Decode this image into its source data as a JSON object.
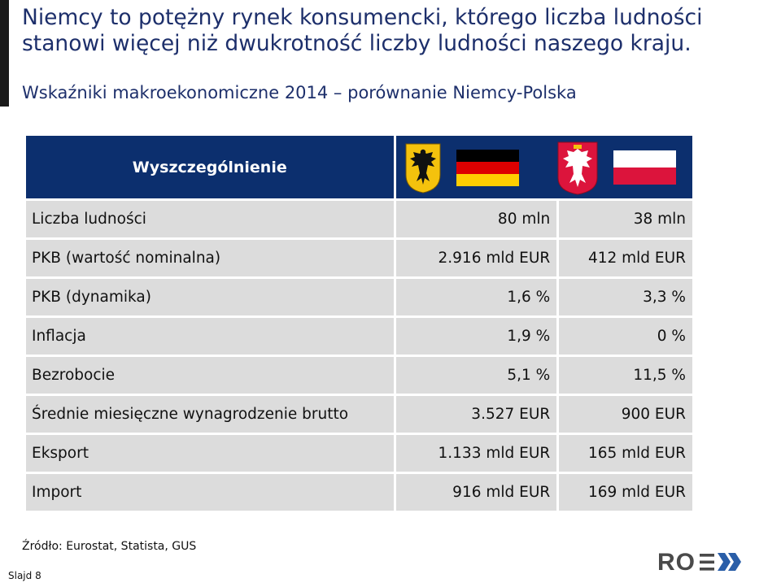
{
  "slide": {
    "title": "Niemcy to potężny rynek konsumencki, którego liczba ludności stanowi więcej niż dwukrotność liczby ludności naszego kraju.",
    "subtitle": "Wskaźniki makroekonomiczne 2014 – porównanie Niemcy-Polska",
    "source": "Źródło: Eurostat, Statista, GUS",
    "slide_number": "Slajd 8",
    "logo_text": "ROEX"
  },
  "table": {
    "header_label": "Wyszczególnienie",
    "colors": {
      "header_bg": "#0c2f6e",
      "row_bg": "#dcdcdc"
    },
    "rows": [
      {
        "label": "Liczba ludności",
        "de": "80 mln",
        "pl": "38 mln"
      },
      {
        "label": "PKB (wartość nominalna)",
        "de": "2.916 mld EUR",
        "pl": "412 mld EUR"
      },
      {
        "label": "PKB (dynamika)",
        "de": "1,6 %",
        "pl": "3,3 %"
      },
      {
        "label": "Inflacja",
        "de": "1,9 %",
        "pl": "0 %"
      },
      {
        "label": "Bezrobocie",
        "de": "5,1 %",
        "pl": "11,5 %"
      },
      {
        "label": "Średnie miesięczne wynagrodzenie brutto",
        "de": "3.527 EUR",
        "pl": "900 EUR"
      },
      {
        "label": "Eksport",
        "de": "1.133 mld EUR",
        "pl": "165 mld EUR"
      },
      {
        "label": "Import",
        "de": "916 mld EUR",
        "pl": "169 mld EUR"
      }
    ]
  },
  "icons": [
    "german-eagle-coat-of-arms-icon",
    "germany-flag-icon",
    "polish-eagle-coat-of-arms-icon",
    "poland-flag-icon"
  ]
}
